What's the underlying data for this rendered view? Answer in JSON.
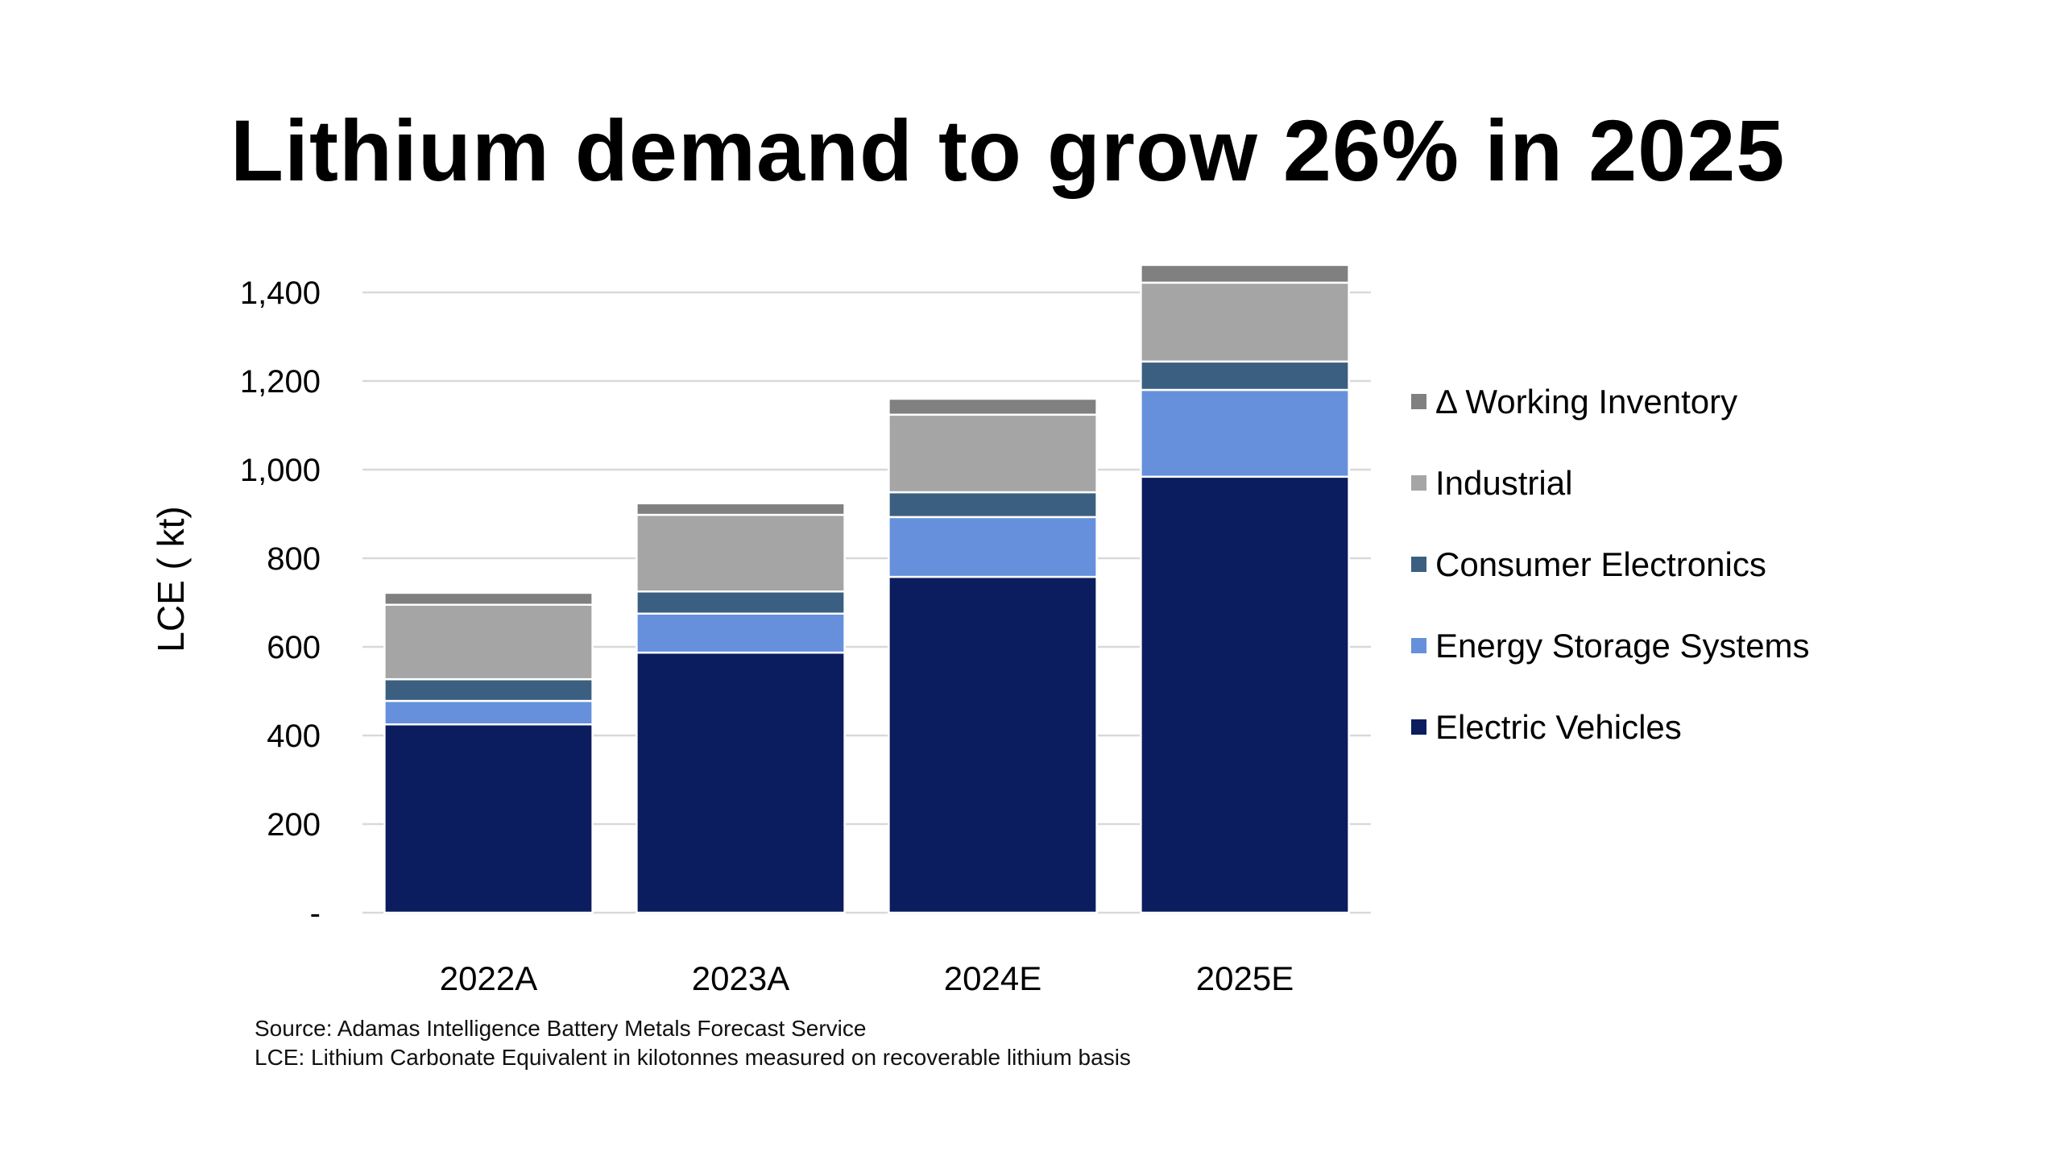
{
  "title": "Lithium demand to grow 26% in 2025",
  "footer": {
    "source": "Source: Adamas Intelligence Battery Metals Forecast Service",
    "note": "LCE: Lithium Carbonate Equivalent in kilotonnes measured on recoverable lithium basis"
  },
  "legend": [
    {
      "label": "Δ Working Inventory",
      "color": "#808080"
    },
    {
      "label": "Industrial",
      "color": "#a5a5a5"
    },
    {
      "label": "Consumer Electronics",
      "color": "#3b5f80"
    },
    {
      "label": "Energy Storage Systems",
      "color": "#6690dc"
    },
    {
      "label": "Electric Vehicles",
      "color": "#0b1d5e"
    }
  ],
  "chart_data": {
    "type": "bar",
    "stacked": true,
    "title": "Lithium demand to grow 26% in 2025",
    "xlabel": "",
    "ylabel": "LCE ( kt)",
    "categories": [
      "2022A",
      "2023A",
      "2024E",
      "2025E"
    ],
    "ylim": [
      0,
      1400
    ],
    "yticks": [
      0,
      200,
      400,
      600,
      800,
      1000,
      1200,
      1400
    ],
    "ytick_labels": [
      "-",
      "200",
      "400",
      "600",
      "800",
      "1,000",
      "1,200",
      "1,400"
    ],
    "grid": true,
    "legend_position": "right",
    "series": [
      {
        "name": "Electric Vehicles",
        "color": "#0b1d5e",
        "values": [
          425,
          587,
          758,
          984
        ]
      },
      {
        "name": "Energy Storage Systems",
        "color": "#6690dc",
        "values": [
          53,
          88,
          135,
          196
        ]
      },
      {
        "name": "Consumer Electronics",
        "color": "#3b5f80",
        "values": [
          49,
          50,
          56,
          64
        ]
      },
      {
        "name": "Industrial",
        "color": "#a5a5a5",
        "values": [
          168,
          173,
          175,
          178
        ]
      },
      {
        "name": "Δ Working Inventory",
        "color": "#808080",
        "values": [
          27,
          26,
          36,
          40
        ]
      }
    ],
    "totals": [
      722,
      924,
      1160,
      1462
    ]
  }
}
